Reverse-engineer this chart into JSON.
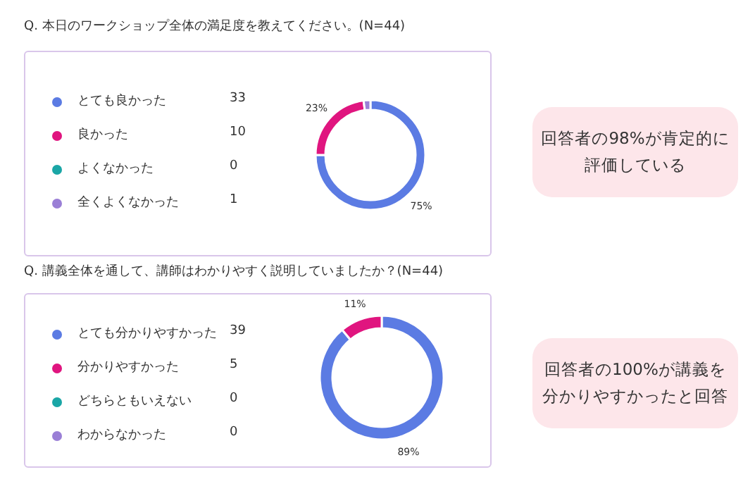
{
  "chart_data": [
    {
      "type": "donut",
      "title": "Q. 本日のワークショップ全体の満足度を教えてください。(N=44)",
      "categories": [
        "とても良かった",
        "良かった",
        "よくなかった",
        "全くよくなかった"
      ],
      "values": [
        75,
        23,
        0,
        2
      ],
      "colors": [
        "#5b7be3",
        "#e0157f",
        "#1aa6a6",
        "#9a7fd6"
      ],
      "value_labels": [
        "75%",
        "23%",
        null,
        null
      ],
      "legend": "left",
      "annotations": [
        {
          "text": "33",
          "x": "とても良かった"
        },
        {
          "text": "10",
          "x": "良かった"
        },
        {
          "text": "0",
          "x": "よくなかった"
        },
        {
          "text": "1",
          "x": "全くよくなかった"
        },
        "回答者の98%が肯定的に評価している"
      ]
    },
    {
      "type": "donut",
      "title": "Q. 講義全体を通して、講師はわかりやすく説明していましたか？(N=44)",
      "categories": [
        "とても分かりやすかった",
        "分かりやすかった",
        "どちらともいえない",
        "わからなかった"
      ],
      "values": [
        89,
        11,
        0,
        0
      ],
      "colors": [
        "#5b7be3",
        "#e0157f",
        "#1aa6a6",
        "#9a7fd6"
      ],
      "value_labels": [
        "89%",
        "11%",
        null,
        null
      ],
      "legend": "left",
      "annotations": [
        {
          "text": "39",
          "x": "とても分かりやすかった"
        },
        {
          "text": "5",
          "x": "分かりやすかった"
        },
        {
          "text": "0",
          "x": "どちらともいえない"
        },
        {
          "text": "0",
          "x": "わからなかった"
        },
        "回答者の100%が講義を分かりやすかったと回答"
      ]
    }
  ]
}
